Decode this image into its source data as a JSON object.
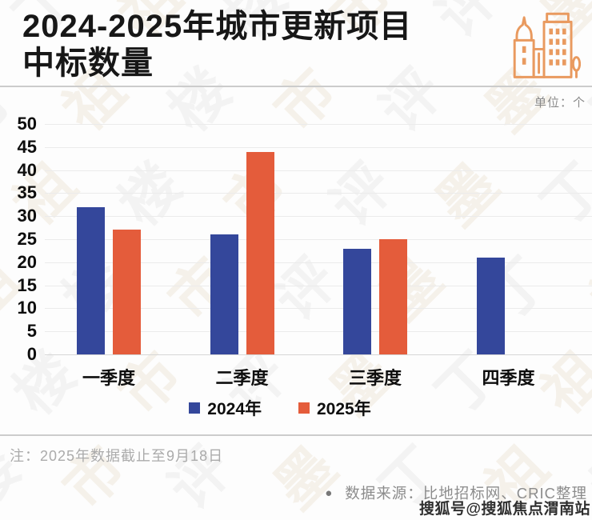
{
  "header": {
    "title_line1": "2024-2025年城市更新项目",
    "title_line2": "中标数量",
    "icon": "buildings-icon",
    "icon_color": "#e99a5f"
  },
  "chart": {
    "unit_label": "单位：个"
  },
  "chart_data": {
    "type": "bar",
    "title": "2024-2025年城市更新项目中标数量",
    "unit": "个",
    "categories": [
      "一季度",
      "二季度",
      "三季度",
      "四季度"
    ],
    "series": [
      {
        "name": "2024年",
        "color": "#34479b",
        "values": [
          32,
          26,
          23,
          21
        ]
      },
      {
        "name": "2025年",
        "color": "#e45c3b",
        "values": [
          27,
          44,
          25,
          null
        ]
      }
    ],
    "ylim": [
      0,
      50
    ],
    "ytick_step": 5,
    "grid": true,
    "legend_position": "bottom"
  },
  "footer": {
    "note": "注：2025年数据截止至9月18日",
    "source_bullet": "●",
    "source": "数据来源：比地招标网、CRIC整理",
    "sohu_watermark": "搜狐号@搜狐焦点渭南站"
  },
  "background_watermark": {
    "chars": [
      "丁",
      "祖",
      "楼",
      "市",
      "评",
      "墨"
    ],
    "beige": "rgba(196,160,110,0.13)",
    "gray": "rgba(155,155,155,0.10)"
  }
}
